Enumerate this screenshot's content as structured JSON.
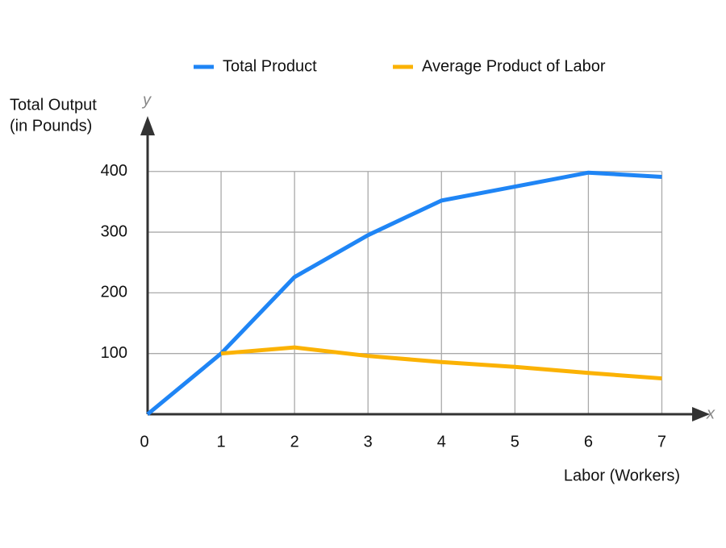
{
  "chart_data": {
    "type": "line",
    "y_label": [
      "Total Output",
      "(in Pounds)"
    ],
    "x_label": "Labor (Workers)",
    "y_axis_symbol": "y",
    "x_axis_symbol": "x",
    "x": [
      0,
      1,
      2,
      3,
      4,
      5,
      6,
      7
    ],
    "series": [
      {
        "name": "Total Product",
        "color": "#1f85f5",
        "values": [
          0,
          100,
          226,
          295,
          352,
          375,
          398,
          391
        ]
      },
      {
        "name": "Average Product of Labor",
        "color": "#fbb204",
        "values": [
          null,
          100,
          110,
          96,
          86,
          78,
          68,
          59
        ]
      }
    ],
    "xlim": [
      0,
      7.5
    ],
    "xticks": [
      0,
      1,
      2,
      3,
      4,
      5,
      6,
      7
    ],
    "ylim": [
      0,
      470
    ],
    "yticks": [
      100,
      200,
      300,
      400
    ],
    "grid": true,
    "legend": "top"
  }
}
